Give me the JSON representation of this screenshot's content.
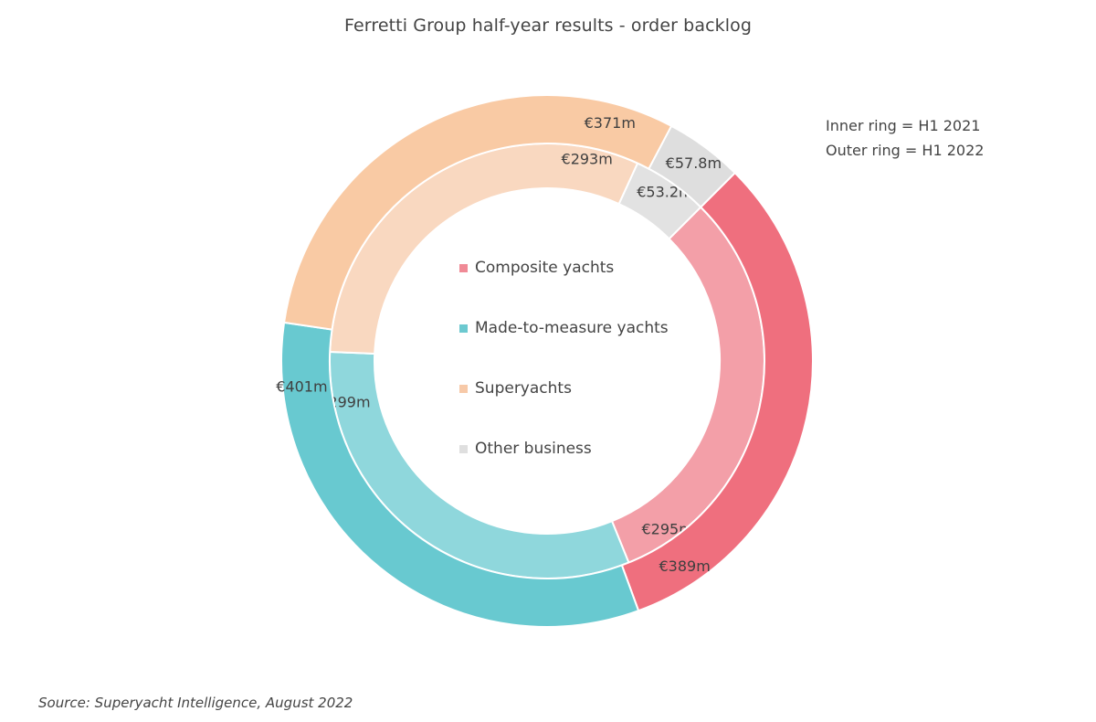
{
  "chart_data": {
    "type": "pie",
    "title": "Ferretti Group half-year results - order backlog",
    "ring_notes": [
      "Inner ring = H1 2021",
      "Outer ring = H1 2022"
    ],
    "source": "Source: Superyacht Intelligence, August 2022",
    "legend": [
      {
        "name": "Composite yachts",
        "color": "#f08a96"
      },
      {
        "name": "Made-to-measure yachts",
        "color": "#6cc9d0"
      },
      {
        "name": "Superyachts",
        "color": "#f7c9a8"
      },
      {
        "name": "Other business",
        "color": "#dfdfdf"
      }
    ],
    "rings": [
      {
        "name": "H1 2021",
        "position": "inner",
        "slices": [
          {
            "category": "Composite yachts",
            "value": 295,
            "label": "€295m",
            "color": "#f39fa8"
          },
          {
            "category": "Made-to-measure yachts",
            "value": 299,
            "label": "€299m",
            "color": "#8fd7dc"
          },
          {
            "category": "Superyachts",
            "value": 293,
            "label": "€293m",
            "color": "#f9d8c0"
          },
          {
            "category": "Other business",
            "value": 53.2,
            "label": "€53.2m",
            "color": "#e2e2e2"
          }
        ]
      },
      {
        "name": "H1 2022",
        "position": "outer",
        "slices": [
          {
            "category": "Composite yachts",
            "value": 389,
            "label": "€389m",
            "color": "#ef6f7e"
          },
          {
            "category": "Made-to-measure yachts",
            "value": 401,
            "label": "€401m",
            "color": "#68c9d0"
          },
          {
            "category": "Superyachts",
            "value": 371,
            "label": "€371m",
            "color": "#f9caa4"
          },
          {
            "category": "Other business",
            "value": 57.8,
            "label": "€57.8m",
            "color": "#dedede"
          }
        ]
      }
    ]
  }
}
